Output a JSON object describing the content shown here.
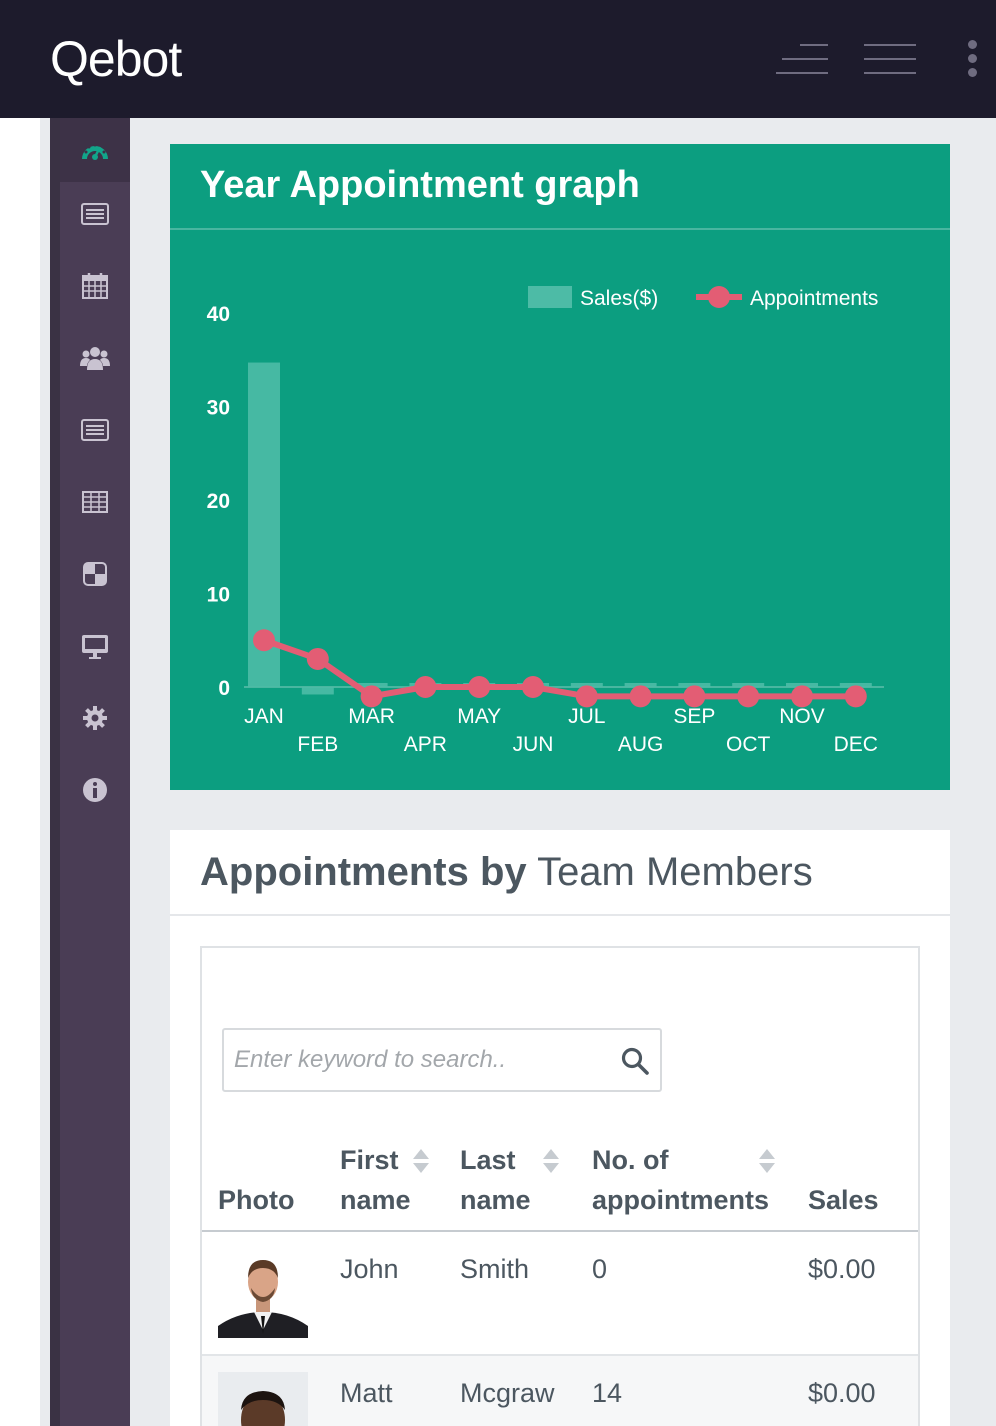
{
  "brand": "Qebot",
  "colors": {
    "topbar": "#1d1b2c",
    "sidebar": "#4a3d55",
    "accent": "#0c9e80",
    "bar": "#4dbba6",
    "line": "#e35d74"
  },
  "sidebar": {
    "items": [
      {
        "icon": "dashboard-icon",
        "active": true
      },
      {
        "icon": "list-icon"
      },
      {
        "icon": "calendar-icon"
      },
      {
        "icon": "users-icon"
      },
      {
        "icon": "list-alt-icon"
      },
      {
        "icon": "table-icon"
      },
      {
        "icon": "contrast-icon"
      },
      {
        "icon": "monitor-icon"
      },
      {
        "icon": "gear-icon"
      },
      {
        "icon": "info-icon"
      }
    ]
  },
  "chart_panel": {
    "title": "Year Appointment graph"
  },
  "chart_data": {
    "type": "bar",
    "title": "Year Appointment graph",
    "categories": [
      "JAN",
      "FEB",
      "MAR",
      "APR",
      "MAY",
      "JUN",
      "JUL",
      "AUG",
      "SEP",
      "OCT",
      "NOV",
      "DEC"
    ],
    "series": [
      {
        "name": "Sales($)",
        "type": "bar",
        "values": [
          34.7,
          -0.8,
          0,
          0,
          0,
          0,
          0,
          0,
          0,
          0,
          0,
          0
        ]
      },
      {
        "name": "Appointments",
        "type": "line",
        "values": [
          5,
          3,
          -1,
          0,
          0,
          0,
          -1,
          -1,
          -1,
          -1,
          -1,
          -1
        ]
      }
    ],
    "yticks": [
      0,
      10,
      20,
      30,
      40
    ],
    "ylim": [
      -1,
      40
    ],
    "legend": "top-right",
    "grid": false
  },
  "team_panel": {
    "title_bold": "Appointments by",
    "title_rest": "Team Members",
    "search": {
      "placeholder": "Enter keyword to search..",
      "value": ""
    },
    "columns": [
      {
        "line1": "",
        "line2": "Photo",
        "sortable": false
      },
      {
        "line1": "First",
        "line2": "name",
        "sortable": true
      },
      {
        "line1": "Last",
        "line2": "name",
        "sortable": true
      },
      {
        "line1": "No. of",
        "line2": "appointments",
        "sortable": true
      },
      {
        "line1": "",
        "line2": "Sales",
        "sortable": false
      }
    ],
    "rows": [
      {
        "first": "John",
        "last": "Smith",
        "appointments": "0",
        "sales": "$0.00"
      },
      {
        "first": "Matt",
        "last": "Mcgraw",
        "appointments": "14",
        "sales": "$0.00"
      }
    ]
  }
}
